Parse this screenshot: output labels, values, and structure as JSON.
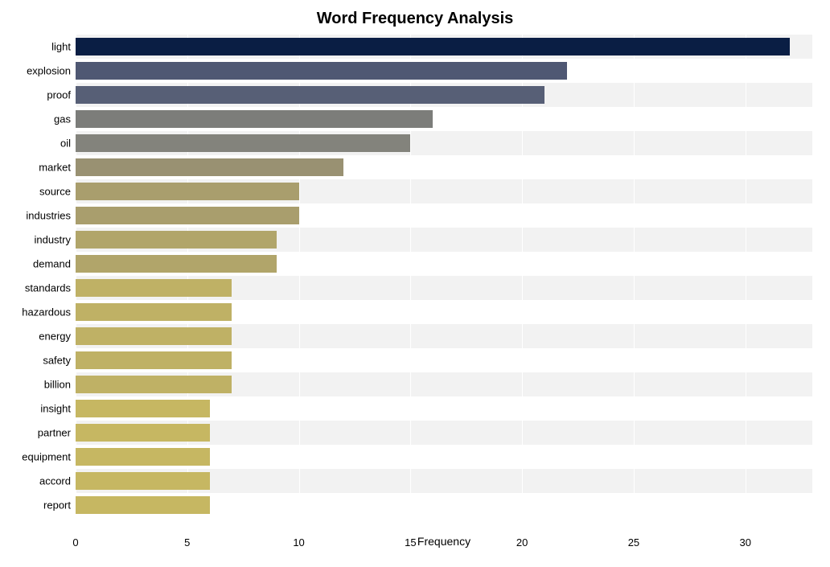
{
  "chart": {
    "type": "bar-horizontal",
    "title": "Word Frequency Analysis",
    "title_fontsize": 20,
    "title_fontweight": "bold",
    "xlabel": "Frequency",
    "label_fontsize": 14,
    "background_color": "#ffffff",
    "plot_band_color": "#f2f2f2",
    "grid_line_color": "#ffffff",
    "xlim": [
      0,
      33
    ],
    "xticks": [
      0,
      5,
      10,
      15,
      20,
      25,
      30
    ],
    "ytick_fontsize": 13,
    "xtick_fontsize": 13,
    "bar_height_ratio": 0.72,
    "categories": [
      "light",
      "explosion",
      "proof",
      "gas",
      "oil",
      "market",
      "source",
      "industries",
      "industry",
      "demand",
      "standards",
      "hazardous",
      "energy",
      "safety",
      "billion",
      "insight",
      "partner",
      "equipment",
      "accord",
      "report"
    ],
    "values": [
      32,
      22,
      21,
      16,
      15,
      12,
      10,
      10,
      9,
      9,
      7,
      7,
      7,
      7,
      7,
      6,
      6,
      6,
      6,
      6
    ],
    "bar_colors": [
      "#0a1e44",
      "#4f5873",
      "#575f76",
      "#7c7d7a",
      "#83837c",
      "#999172",
      "#a99e6d",
      "#a99e6d",
      "#b1a56a",
      "#b1a56a",
      "#bfb165",
      "#bfb165",
      "#bfb165",
      "#bfb165",
      "#bfb165",
      "#c6b762",
      "#c6b762",
      "#c6b762",
      "#c6b762",
      "#c6b762"
    ]
  }
}
